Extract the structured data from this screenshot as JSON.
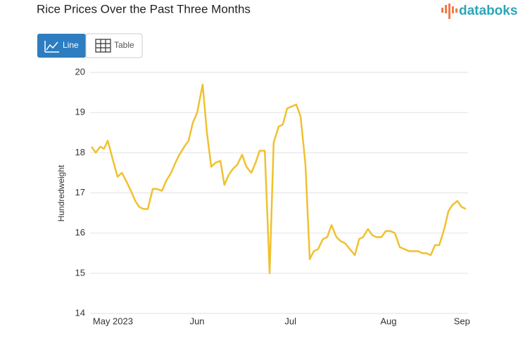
{
  "brand": "databoks",
  "controls": [
    "Line",
    "Table"
  ],
  "chart_data": {
    "type": "line",
    "title": "Rice Prices Over the Past Three Months",
    "y_label": "Hundredweight",
    "color": "#f0c12f",
    "grid": true,
    "xlim": [
      0,
      123
    ],
    "xticks": [
      {
        "value": 7,
        "label": "May 2023"
      },
      {
        "value": 34.5,
        "label": "Jun"
      },
      {
        "value": 65,
        "label": "Jul"
      },
      {
        "value": 97,
        "label": "Aug"
      },
      {
        "value": 121,
        "label": "Sep"
      }
    ],
    "ylim": [
      14,
      20
    ],
    "yticks": [
      14,
      15,
      16,
      17,
      18,
      19,
      20
    ],
    "x": [
      0,
      1.4,
      2.8,
      4.1,
      5.3,
      6.9,
      8.5,
      9.9,
      11.3,
      12.9,
      14.3,
      15.6,
      17,
      18.4,
      20,
      21.4,
      23,
      24.4,
      26,
      27.4,
      28.7,
      30.3,
      31.7,
      33.1,
      34.5,
      36.3,
      37.7,
      39.1,
      40.5,
      42.1,
      43.4,
      44.8,
      46.2,
      47.6,
      49.2,
      50.6,
      52.2,
      53.6,
      54.9,
      56.6,
      58.2,
      59.5,
      61.1,
      62.5,
      63.9,
      65.3,
      66.9,
      68.3,
      69.9,
      71.3,
      72.6,
      74,
      75.6,
      77,
      78.4,
      80,
      81.4,
      82.8,
      84.4,
      86,
      87.4,
      88.7,
      90.3,
      91.7,
      93.1,
      94.7,
      96.1,
      97.7,
      99.1,
      100.7,
      102.3,
      103.7,
      105.3,
      106.7,
      108,
      109.4,
      110.8,
      112.2,
      113.6,
      115.2,
      116.6,
      117.9,
      119.5,
      120.9,
      122.3
    ],
    "values": [
      18.15,
      18.0,
      18.15,
      18.1,
      18.3,
      17.85,
      17.4,
      17.5,
      17.3,
      17.05,
      16.8,
      16.65,
      16.6,
      16.6,
      17.1,
      17.1,
      17.05,
      17.3,
      17.5,
      17.75,
      17.95,
      18.15,
      18.3,
      18.75,
      19.0,
      19.7,
      18.5,
      17.65,
      17.75,
      17.8,
      17.2,
      17.45,
      17.6,
      17.7,
      17.95,
      17.65,
      17.5,
      17.75,
      18.05,
      18.05,
      15.0,
      18.25,
      18.65,
      18.7,
      19.1,
      19.15,
      19.2,
      18.9,
      17.7,
      15.35,
      15.55,
      15.6,
      15.85,
      15.9,
      16.2,
      15.9,
      15.8,
      15.75,
      15.6,
      15.45,
      15.85,
      15.9,
      16.1,
      15.95,
      15.9,
      15.9,
      16.05,
      16.05,
      16.0,
      15.65,
      15.6,
      15.55,
      15.55,
      15.55,
      15.5,
      15.5,
      15.45,
      15.7,
      15.7,
      16.1,
      16.55,
      16.7,
      16.8,
      16.65,
      16.6
    ]
  }
}
